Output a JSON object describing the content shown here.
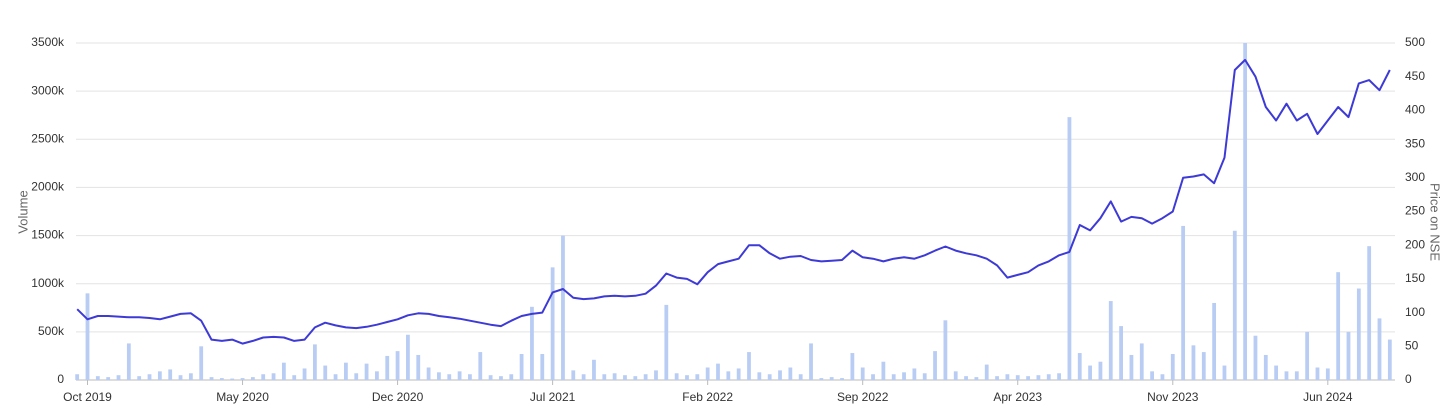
{
  "chart_data": {
    "type": "bar",
    "y_label": "Volume",
    "y2_label": "Price on NSE",
    "categories": [
      null,
      "Oct 2019",
      null,
      null,
      null,
      null,
      null,
      null,
      null,
      null,
      null,
      null,
      null,
      null,
      null,
      null,
      "May 2020",
      null,
      null,
      null,
      null,
      null,
      null,
      null,
      null,
      null,
      null,
      null,
      null,
      null,
      null,
      "Dec 2020",
      null,
      null,
      null,
      null,
      null,
      null,
      null,
      null,
      null,
      null,
      null,
      null,
      null,
      null,
      "Jul 2021",
      null,
      null,
      null,
      null,
      null,
      null,
      null,
      null,
      null,
      null,
      null,
      null,
      null,
      null,
      "Feb 2022",
      null,
      null,
      null,
      null,
      null,
      null,
      null,
      null,
      null,
      null,
      null,
      null,
      null,
      null,
      "Sep 2022",
      null,
      null,
      null,
      null,
      null,
      null,
      null,
      null,
      null,
      null,
      null,
      null,
      null,
      null,
      "Apr 2023",
      null,
      null,
      null,
      null,
      null,
      null,
      null,
      null,
      null,
      null,
      null,
      null,
      null,
      null,
      "Nov 2023",
      null,
      null,
      null,
      null,
      null,
      null,
      null,
      null,
      null,
      null,
      null,
      null,
      null,
      null,
      "Jun 2024",
      null,
      null,
      null,
      null,
      null,
      null
    ],
    "series": [
      {
        "name": "Volume",
        "type": "bar",
        "color": "#b9cdf4",
        "values": [
          60,
          900,
          40,
          30,
          50,
          380,
          40,
          60,
          90,
          110,
          50,
          70,
          350,
          30,
          20,
          15,
          20,
          30,
          60,
          70,
          180,
          50,
          120,
          370,
          150,
          60,
          180,
          70,
          170,
          90,
          250,
          300,
          470,
          260,
          130,
          80,
          60,
          90,
          60,
          290,
          50,
          40,
          60,
          270,
          760,
          270,
          1170,
          1500,
          100,
          60,
          210,
          60,
          70,
          50,
          40,
          60,
          100,
          780,
          70,
          50,
          60,
          130,
          170,
          90,
          120,
          290,
          80,
          60,
          100,
          130,
          60,
          380,
          20,
          30,
          20,
          280,
          130,
          60,
          190,
          60,
          80,
          120,
          70,
          300,
          620,
          90,
          40,
          30,
          160,
          40,
          60,
          50,
          40,
          50,
          60,
          70,
          2730,
          280,
          150,
          190,
          820,
          560,
          260,
          380,
          90,
          60,
          270,
          1600,
          360,
          290,
          800,
          150,
          1550,
          3500,
          460,
          260,
          150,
          90,
          90,
          500,
          130,
          120,
          1120,
          500,
          950,
          1390,
          640,
          420
        ]
      },
      {
        "name": "Price",
        "type": "line",
        "axis": "y2",
        "color": "#3d3ad6",
        "values": [
          105,
          90,
          95,
          95,
          94,
          93,
          93,
          92,
          90,
          94,
          98,
          99,
          88,
          60,
          58,
          60,
          54,
          58,
          63,
          64,
          63,
          58,
          60,
          78,
          85,
          81,
          78,
          77,
          79,
          82,
          86,
          90,
          96,
          99,
          98,
          95,
          93,
          91,
          88,
          85,
          82,
          80,
          88,
          95,
          98,
          100,
          130,
          135,
          122,
          120,
          121,
          124,
          125,
          124,
          125,
          128,
          140,
          158,
          152,
          150,
          142,
          160,
          172,
          176,
          180,
          200,
          200,
          188,
          180,
          183,
          184,
          178,
          176,
          177,
          178,
          192,
          182,
          180,
          176,
          180,
          182,
          180,
          185,
          192,
          198,
          192,
          188,
          185,
          180,
          170,
          152,
          156,
          160,
          170,
          176,
          185,
          190,
          230,
          222,
          240,
          265,
          235,
          242,
          240,
          232,
          240,
          250,
          300,
          302,
          305,
          292,
          330,
          460,
          475,
          450,
          405,
          385,
          410,
          385,
          395,
          365,
          385,
          405,
          390,
          440,
          445,
          430,
          460
        ]
      }
    ],
    "ylim": [
      0,
      3500
    ],
    "yticks": [
      0,
      {
        "value": 500,
        "label": "500k"
      },
      {
        "value": 1000,
        "label": "1000k"
      },
      {
        "value": 1500,
        "label": "1500k"
      },
      {
        "value": 2000,
        "label": "2000k"
      },
      {
        "value": 2500,
        "label": "2500k"
      },
      {
        "value": 3000,
        "label": "3000k"
      },
      {
        "value": 3500,
        "label": "3500k"
      }
    ],
    "y2lim": [
      0,
      500
    ],
    "y2ticks": [
      0,
      50,
      100,
      150,
      200,
      250,
      300,
      350,
      400,
      450,
      500
    ],
    "grid": true
  }
}
